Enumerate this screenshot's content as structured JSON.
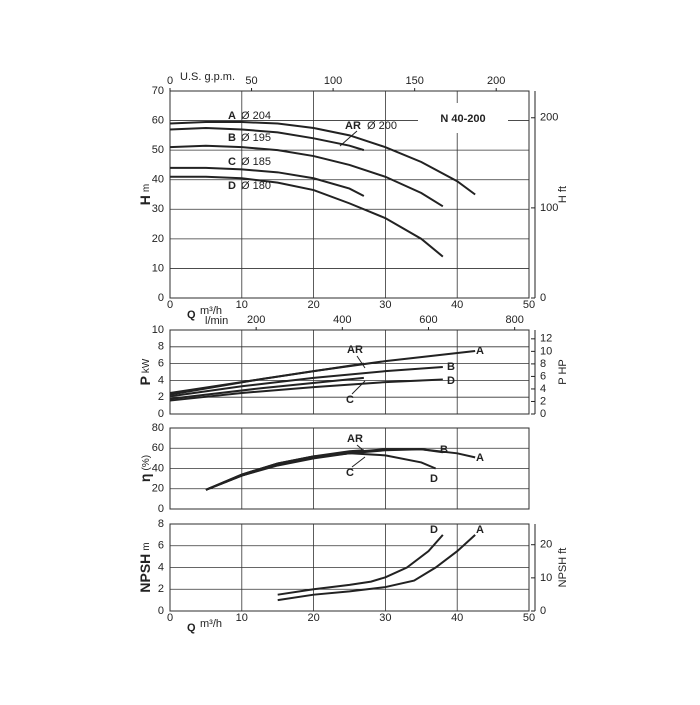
{
  "chart_data": [
    {
      "type": "line",
      "title": "N 40-200",
      "xlabel": "Q",
      "xunit": "m³/h",
      "x2label": "U.S. g.p.m.",
      "ylabel": "H",
      "yunit": "m",
      "y2label": "H ft",
      "xlim": [
        0,
        50
      ],
      "xticks": [
        0,
        10,
        20,
        30,
        40,
        50
      ],
      "xtick_labels": true,
      "x2lim": [
        0,
        220.1
      ],
      "x2ticks": [
        0,
        50,
        100,
        150,
        200
      ],
      "ylim": [
        0,
        70
      ],
      "yticks": [
        0,
        10,
        20,
        30,
        40,
        50,
        60,
        70
      ],
      "y2lim": [
        0,
        229.7
      ],
      "y2ticks": [
        0,
        100,
        200
      ],
      "grid": true,
      "series": [
        {
          "name": "A",
          "label": "Ø 204",
          "color": "#222222",
          "x": [
            0,
            5,
            10,
            15,
            20,
            25,
            30,
            35,
            40,
            42.5
          ],
          "values": [
            59,
            59.5,
            59.5,
            59,
            57.5,
            55,
            51,
            46,
            39.5,
            35
          ]
        },
        {
          "name": "AR",
          "label": "Ø 200",
          "color": "#222222",
          "x": [
            0,
            5,
            10,
            15,
            20,
            25,
            27
          ],
          "values": [
            57,
            57.5,
            57,
            56,
            54,
            51.5,
            50
          ]
        },
        {
          "name": "B",
          "label": "Ø 195",
          "color": "#222222",
          "x": [
            0,
            5,
            10,
            15,
            20,
            25,
            30,
            35,
            38
          ],
          "values": [
            51,
            51.5,
            51,
            50,
            48,
            45,
            41,
            35.5,
            31
          ]
        },
        {
          "name": "C",
          "label": "Ø 185",
          "color": "#222222",
          "x": [
            0,
            5,
            10,
            15,
            20,
            25,
            27
          ],
          "values": [
            44,
            44,
            43.5,
            42.5,
            40.5,
            37,
            34.5
          ]
        },
        {
          "name": "D",
          "label": "Ø 180",
          "color": "#222222",
          "x": [
            0,
            5,
            10,
            15,
            20,
            25,
            30,
            35,
            38
          ],
          "values": [
            41,
            41,
            40.5,
            39,
            36.5,
            32,
            27,
            20,
            14
          ]
        }
      ]
    },
    {
      "type": "line",
      "x2label": "l/min",
      "ylabel": "P",
      "yunit": "kW",
      "y2label": "P HP",
      "xlim": [
        0,
        50
      ],
      "xticks": [
        0,
        10,
        20,
        30,
        40,
        50
      ],
      "xtick_labels": false,
      "x2lim": [
        0,
        833.3
      ],
      "x2ticks": [
        200,
        400,
        600,
        800
      ],
      "ylim": [
        0,
        10
      ],
      "yticks": [
        0,
        2,
        4,
        6,
        8,
        10
      ],
      "y2lim": [
        0,
        13.41
      ],
      "y2ticks": [
        0,
        2,
        4,
        6,
        8,
        10,
        12
      ],
      "grid": true,
      "series": [
        {
          "name": "A",
          "color": "#222222",
          "x": [
            0,
            10,
            20,
            30,
            42.5
          ],
          "values": [
            2.5,
            3.8,
            5.1,
            6.3,
            7.5
          ]
        },
        {
          "name": "AR",
          "color": "#222222",
          "x": [
            0,
            13,
            27
          ],
          "values": [
            2.3,
            4.2,
            6.0
          ]
        },
        {
          "name": "B",
          "color": "#222222",
          "x": [
            0,
            10,
            20,
            30,
            38
          ],
          "values": [
            2.1,
            3.3,
            4.3,
            5.1,
            5.6
          ]
        },
        {
          "name": "C",
          "color": "#222222",
          "x": [
            0,
            13,
            27
          ],
          "values": [
            1.8,
            3.1,
            4.3
          ]
        },
        {
          "name": "D",
          "color": "#222222",
          "x": [
            0,
            10,
            20,
            30,
            38
          ],
          "values": [
            1.6,
            2.5,
            3.2,
            3.8,
            4.1
          ]
        }
      ]
    },
    {
      "type": "line",
      "ylabel": "η",
      "yunit": "(%)",
      "xlim": [
        0,
        50
      ],
      "xticks": [
        0,
        10,
        20,
        30,
        40,
        50
      ],
      "xtick_labels": false,
      "ylim": [
        0,
        80
      ],
      "yticks": [
        0,
        20,
        40,
        60,
        80
      ],
      "grid": true,
      "series": [
        {
          "name": "A",
          "color": "#222222",
          "x": [
            5,
            10,
            15,
            20,
            25,
            30,
            35,
            40,
            42.5
          ],
          "values": [
            19,
            33,
            43,
            50,
            55,
            58,
            59,
            55,
            51
          ]
        },
        {
          "name": "AR",
          "color": "#222222",
          "x": [
            5,
            10,
            15,
            20,
            25,
            27
          ],
          "values": [
            19,
            34,
            45,
            52,
            57,
            58
          ]
        },
        {
          "name": "B",
          "color": "#222222",
          "x": [
            5,
            10,
            15,
            20,
            25,
            30,
            35,
            38
          ],
          "values": [
            19,
            33,
            44,
            51,
            56,
            59,
            59,
            56
          ]
        },
        {
          "name": "C",
          "color": "#222222",
          "x": [
            5,
            10,
            15,
            20,
            25,
            27
          ],
          "values": [
            19,
            33,
            44,
            51,
            55,
            56
          ]
        },
        {
          "name": "D",
          "color": "#222222",
          "x": [
            5,
            10,
            15,
            20,
            25,
            30,
            35,
            37
          ],
          "values": [
            19,
            34,
            45,
            52,
            55,
            53,
            46,
            40
          ]
        }
      ]
    },
    {
      "type": "line",
      "xlabel": "Q",
      "xunit": "m³/h",
      "ylabel": "NPSH",
      "yunit": "m",
      "y2label": "NPSH ft",
      "xlim": [
        0,
        50
      ],
      "xticks": [
        0,
        10,
        20,
        30,
        40,
        50
      ],
      "xtick_labels": true,
      "ylim": [
        0,
        8
      ],
      "yticks": [
        0,
        2,
        4,
        6,
        8
      ],
      "y2lim": [
        0,
        26.25
      ],
      "y2ticks": [
        0,
        10,
        20
      ],
      "grid": true,
      "series": [
        {
          "name": "D",
          "color": "#222222",
          "x": [
            15,
            20,
            25,
            28,
            30,
            33,
            36,
            38
          ],
          "values": [
            1.5,
            2.0,
            2.4,
            2.7,
            3.1,
            4.0,
            5.5,
            7.0
          ]
        },
        {
          "name": "A",
          "color": "#222222",
          "x": [
            15,
            20,
            25,
            30,
            34,
            37,
            40,
            42.5
          ],
          "values": [
            1.0,
            1.5,
            1.8,
            2.2,
            2.8,
            4.0,
            5.5,
            7.0
          ]
        }
      ]
    }
  ]
}
